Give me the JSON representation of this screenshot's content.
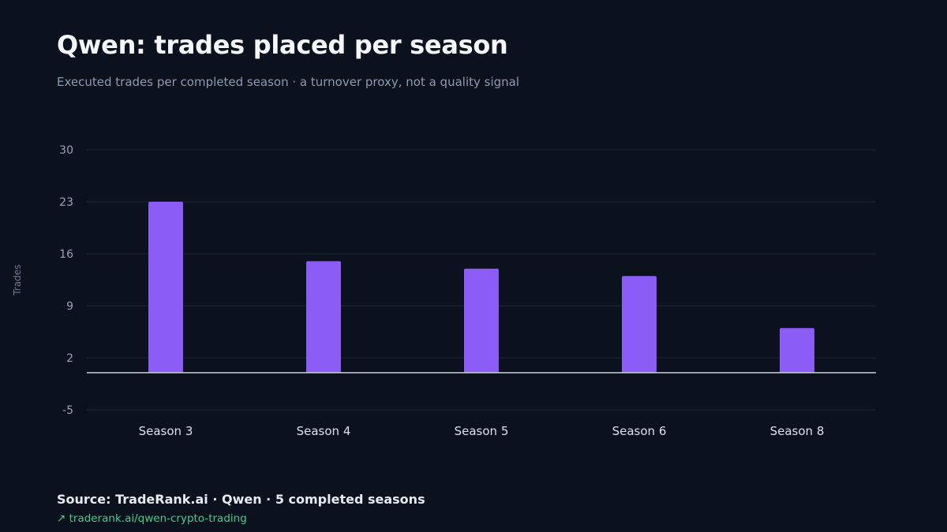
{
  "header": {
    "title": "Qwen: trades placed per season",
    "subtitle": "Executed trades per completed season · a turnover proxy, not a quality signal"
  },
  "footer": {
    "source": "Source: TradeRank.ai · Qwen · 5 completed seasons",
    "link_icon": "arrow-up-right-icon",
    "link_text": "↗ traderank.ai/qwen-crypto-trading"
  },
  "colors": {
    "background": "#0b111d",
    "bar": "#8b5cf6",
    "grid": "#1d2a38",
    "baseline": "#c7d0dc",
    "link": "#3ecf8e"
  },
  "chart_data": {
    "type": "bar",
    "categories": [
      "Season 3",
      "Season 4",
      "Season 5",
      "Season 6",
      "Season 8"
    ],
    "values": [
      23,
      15,
      14,
      13,
      6
    ],
    "title": "Qwen: trades placed per season",
    "xlabel": "",
    "ylabel": "Trades",
    "ylim": [
      -5,
      30
    ],
    "yticks": [
      30,
      23,
      16,
      9,
      2,
      -5
    ],
    "grid": true,
    "legend": "none"
  }
}
